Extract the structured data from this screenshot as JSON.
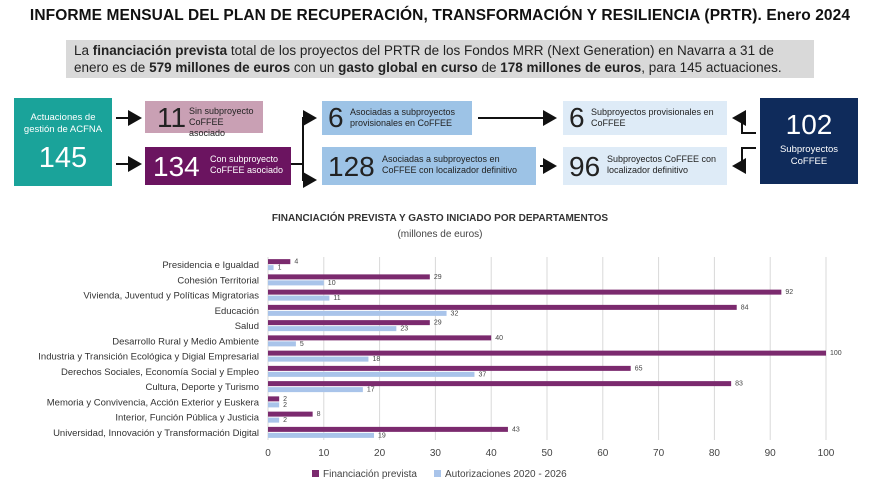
{
  "header": {
    "title": "INFORME MENSUAL DEL PLAN DE RECUPERACIÓN, TRANSFORMACIÓN Y RESILIENCIA (PRTR). Enero 2024"
  },
  "intro": {
    "t1": "La ",
    "b1": "financiación prevista",
    "t2": " total de los proyectos del PRTR de los Fondos MRR (Next Generation) en Navarra a 31 de enero es de ",
    "b2": "579 millones de euros",
    "t3": " con un ",
    "b3": "gasto global en curso",
    "t4": " de ",
    "b4": "178 millones de euros",
    "t5": ", para 145 actuaciones."
  },
  "flow": {
    "acfna": {
      "label": "Actuaciones de gestión de ACFNA",
      "value": "145"
    },
    "sin": {
      "value": "11",
      "label": "Sin subproyecto CoFFEE asociado"
    },
    "con": {
      "value": "134",
      "label": "Con subproyecto CoFFEE asociado"
    },
    "asoc_prov": {
      "value": "6",
      "label": "Asociadas a subproyectos provisionales en CoFFEE"
    },
    "asoc_def": {
      "value": "128",
      "label": "Asociadas a subproyectos en CoFFEE con localizador definitivo"
    },
    "sub_prov": {
      "value": "6",
      "label": "Subproyectos provisionales en CoFFEE"
    },
    "sub_def": {
      "value": "96",
      "label": "Subproyectos CoFFEE con localizador definitivo"
    },
    "sub_total": {
      "value": "102",
      "label": "Subproyectos CoFFEE"
    }
  },
  "colors": {
    "financiacion": "#7b2a6e",
    "autorizaciones": "#a9c4ea",
    "grid": "#d9d9d9"
  },
  "chart_data": {
    "type": "bar",
    "orientation": "horizontal",
    "title": "FINANCIACIÓN PREVISTA Y GASTO INICIADO POR DEPARTAMENTOS",
    "subtitle": "(millones de euros)",
    "categories": [
      "Presidencia e Igualdad",
      "Cohesión Territorial",
      "Vivienda, Juventud y Políticas Migratorias",
      "Educación",
      "Salud",
      "Desarrollo Rural y Medio Ambiente",
      "Industria y Transición Ecológica y Digial Empresarial",
      "Derechos Sociales, Economía Social y Empleo",
      "Cultura, Deporte y Turismo",
      "Memoria y Convivencia, Acción Exterior y Euskera",
      "Interior, Función Pública y Justicia",
      "Universidad, Innovación y Transformación Digital"
    ],
    "series": [
      {
        "name": "Financiación prevista",
        "values": [
          4,
          29,
          92,
          84,
          29,
          40,
          100,
          65,
          83,
          2,
          8,
          43
        ]
      },
      {
        "name": "Autorizaciones 2020 - 2026",
        "values": [
          1,
          10,
          11,
          32,
          23,
          5,
          18,
          37,
          17,
          2,
          2,
          19
        ]
      }
    ],
    "xlim": [
      0,
      100
    ],
    "xticks": [
      "0",
      "10",
      "20",
      "30",
      "40",
      "50",
      "60",
      "70",
      "80",
      "90",
      "100"
    ],
    "grid": true,
    "legend": "bottom"
  }
}
